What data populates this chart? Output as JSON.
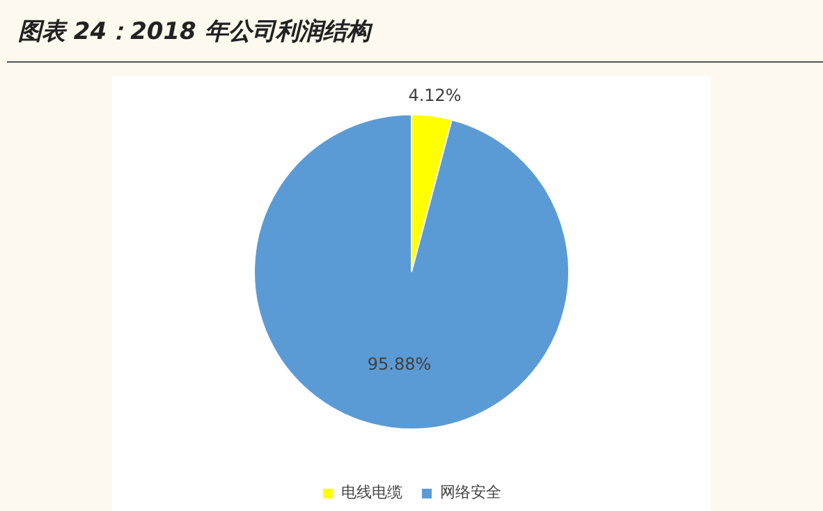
{
  "chart_data": {
    "type": "pie",
    "title": "图表 24：2018 年公司利润结构",
    "categories": [
      "电线电缆",
      "网络安全"
    ],
    "values": [
      4.12,
      95.88
    ],
    "colors": [
      "#ffff00",
      "#5b9bd5"
    ],
    "value_labels": [
      "4.12%",
      "95.88%"
    ],
    "legend": "bottom"
  }
}
